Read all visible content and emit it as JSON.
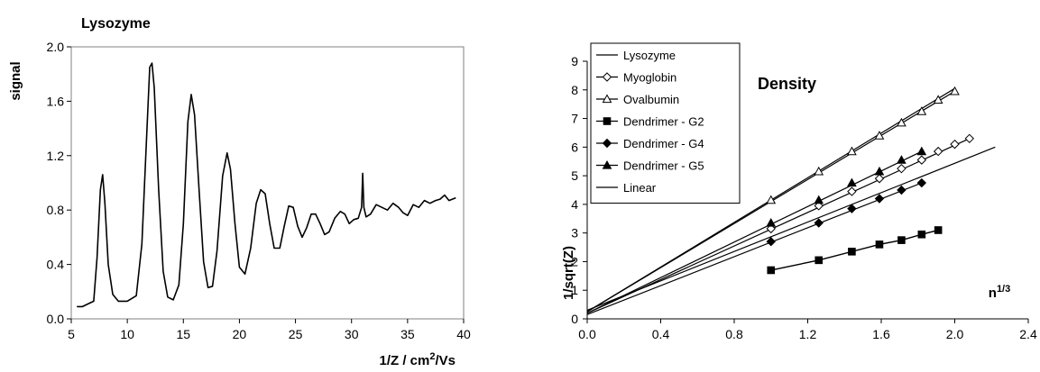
{
  "chart_data": [
    {
      "type": "line",
      "title": "Lysozyme",
      "xlabel": "1/Z / cm",
      "xlabel_sup": "2",
      "xlabel_tail": "/Vs",
      "ylabel": "signal",
      "xlim": [
        5,
        40
      ],
      "ylim": [
        0,
        2.0
      ],
      "xticks": [
        5,
        10,
        15,
        20,
        25,
        30,
        35,
        40
      ],
      "xtick_labels": [
        "5",
        "10",
        "15",
        "20",
        "25",
        "30",
        "35",
        "40"
      ],
      "yticks": [
        0,
        0.4,
        0.8,
        1.2,
        1.6,
        2.0
      ],
      "ytick_labels": [
        "0.0",
        "0.4",
        "0.8",
        "1.2",
        "1.6",
        "2.0"
      ],
      "grid": false,
      "series": [
        {
          "x": [
            5.5,
            6.0,
            6.5,
            7.0,
            7.3,
            7.6,
            7.8,
            8.0,
            8.3,
            8.7,
            9.2,
            10.0,
            10.8,
            11.3,
            11.7,
            12.0,
            12.2,
            12.4,
            12.8,
            13.2,
            13.6,
            14.1,
            14.6,
            15.0,
            15.4,
            15.7,
            16.0,
            16.4,
            16.8,
            17.2,
            17.6,
            18.0,
            18.5,
            18.9,
            19.2,
            19.6,
            20.0,
            20.5,
            21.0,
            21.5,
            21.9,
            22.3,
            22.7,
            23.1,
            23.6,
            24.0,
            24.4,
            24.8,
            25.2,
            25.6,
            26.0,
            26.4,
            26.8,
            27.2,
            27.6,
            28.0,
            28.5,
            29.0,
            29.4,
            29.8,
            30.2,
            30.6,
            30.9,
            31.0,
            31.1,
            31.3,
            31.7,
            32.2,
            32.7,
            33.2,
            33.7,
            34.2,
            34.6,
            35.0,
            35.5,
            36.0,
            36.5,
            37.0,
            37.5,
            37.9,
            38.3,
            38.7,
            39.0,
            39.3
          ],
          "y": [
            0.09,
            0.09,
            0.11,
            0.13,
            0.45,
            0.95,
            1.06,
            0.85,
            0.4,
            0.18,
            0.13,
            0.13,
            0.17,
            0.55,
            1.3,
            1.85,
            1.88,
            1.7,
            0.95,
            0.35,
            0.16,
            0.14,
            0.25,
            0.7,
            1.45,
            1.65,
            1.5,
            0.95,
            0.42,
            0.23,
            0.24,
            0.5,
            1.05,
            1.22,
            1.1,
            0.7,
            0.38,
            0.33,
            0.52,
            0.85,
            0.95,
            0.92,
            0.7,
            0.52,
            0.52,
            0.68,
            0.83,
            0.82,
            0.68,
            0.6,
            0.67,
            0.77,
            0.77,
            0.7,
            0.62,
            0.64,
            0.74,
            0.79,
            0.77,
            0.7,
            0.73,
            0.74,
            0.82,
            1.07,
            0.82,
            0.75,
            0.77,
            0.84,
            0.82,
            0.8,
            0.85,
            0.82,
            0.78,
            0.76,
            0.84,
            0.82,
            0.87,
            0.85,
            0.87,
            0.88,
            0.91,
            0.87,
            0.88,
            0.89
          ]
        }
      ]
    },
    {
      "type": "scatter",
      "title": "Density",
      "xlabel": "n",
      "xlabel_sup": "1/3",
      "ylabel": "1/sqrt(Z)",
      "xlim": [
        0,
        2.4
      ],
      "ylim": [
        0,
        9
      ],
      "xticks": [
        0,
        0.4,
        0.8,
        1.2,
        1.6,
        2.0,
        2.4
      ],
      "xtick_labels": [
        "0.0",
        "0.4",
        "0.8",
        "1.2",
        "1.6",
        "2.0",
        "2.4"
      ],
      "yticks": [
        0,
        1,
        2,
        3,
        4,
        5,
        6,
        7,
        8,
        9
      ],
      "ytick_labels": [
        "0",
        "1",
        "2",
        "3",
        "4",
        "5",
        "6",
        "7",
        "8",
        "9"
      ],
      "grid": false,
      "legend_position": "top-left",
      "legend": [
        "Lysozyme",
        "Myoglobin",
        "Ovalbumin",
        "Dendrimer - G2",
        "Dendrimer - G4",
        "Dendrimer - G5",
        "Linear"
      ],
      "series": [
        {
          "name": "Lysozyme",
          "marker": "line",
          "x": [
            0,
            2.0
          ],
          "y": [
            0.25,
            8.05
          ]
        },
        {
          "name": "Myoglobin",
          "marker": "diamond-open",
          "x": [
            1.0,
            1.26,
            1.44,
            1.59,
            1.71,
            1.82,
            1.91,
            2.0,
            2.08
          ],
          "y": [
            3.15,
            3.95,
            4.45,
            4.9,
            5.25,
            5.55,
            5.85,
            6.1,
            6.3
          ],
          "fit": {
            "x": [
              0,
              2.08
            ],
            "y": [
              0.2,
              6.3
            ]
          }
        },
        {
          "name": "Ovalbumin",
          "marker": "triangle-open",
          "x": [
            1.0,
            1.26,
            1.44,
            1.59,
            1.71,
            1.82,
            1.91,
            2.0
          ],
          "y": [
            4.15,
            5.15,
            5.85,
            6.4,
            6.85,
            7.25,
            7.65,
            7.95
          ],
          "fit": {
            "x": [
              0,
              2.0
            ],
            "y": [
              0.25,
              7.95
            ]
          }
        },
        {
          "name": "Dendrimer - G2",
          "marker": "square-filled",
          "x": [
            1.0,
            1.26,
            1.44,
            1.59,
            1.71,
            1.82,
            1.91
          ],
          "y": [
            1.7,
            2.05,
            2.35,
            2.6,
            2.75,
            2.95,
            3.1
          ]
        },
        {
          "name": "Dendrimer - G4",
          "marker": "diamond-filled",
          "x": [
            1.0,
            1.26,
            1.44,
            1.59,
            1.71,
            1.82
          ],
          "y": [
            2.7,
            3.35,
            3.85,
            4.2,
            4.5,
            4.75
          ],
          "fit": {
            "x": [
              0,
              1.82
            ],
            "y": [
              0.15,
              4.75
            ]
          }
        },
        {
          "name": "Dendrimer - G5",
          "marker": "triangle-filled",
          "x": [
            1.0,
            1.26,
            1.44,
            1.59,
            1.71,
            1.82
          ],
          "y": [
            3.35,
            4.15,
            4.75,
            5.15,
            5.55,
            5.85
          ],
          "fit": {
            "x": [
              0,
              1.82
            ],
            "y": [
              0.2,
              5.85
            ]
          }
        },
        {
          "name": "Linear",
          "marker": "line",
          "x": [
            0,
            2.22
          ],
          "y": [
            0.3,
            6.0
          ]
        }
      ]
    }
  ]
}
